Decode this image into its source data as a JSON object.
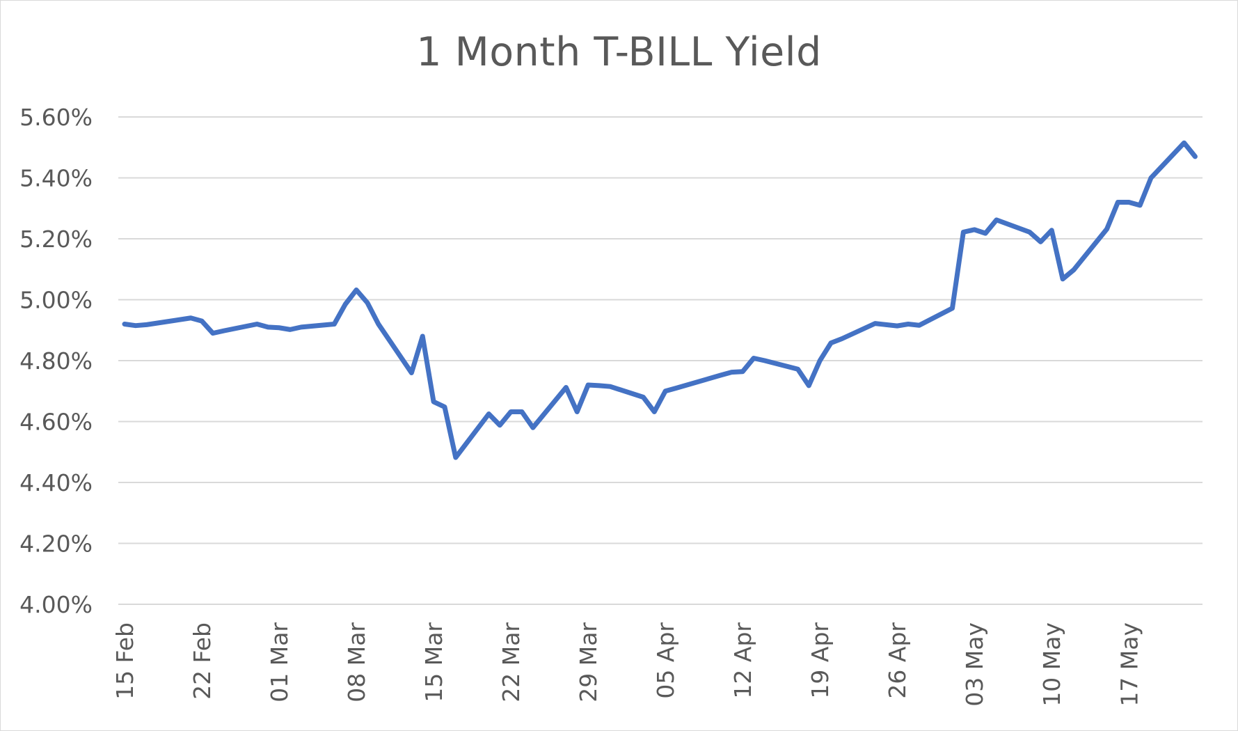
{
  "chart_data": {
    "type": "line",
    "title": "1 Month T-BILL Yield",
    "xlabel": "",
    "ylabel": "",
    "ylim": [
      4.0,
      5.6
    ],
    "yticks": [
      "4.00%",
      "4.20%",
      "4.40%",
      "4.60%",
      "4.80%",
      "5.00%",
      "5.20%",
      "5.40%",
      "5.60%"
    ],
    "xticks": [
      {
        "date": "2023-02-15",
        "label": "15 Feb"
      },
      {
        "date": "2023-02-22",
        "label": "22 Feb"
      },
      {
        "date": "2023-03-01",
        "label": "01 Mar"
      },
      {
        "date": "2023-03-08",
        "label": "08 Mar"
      },
      {
        "date": "2023-03-15",
        "label": "15 Mar"
      },
      {
        "date": "2023-03-22",
        "label": "22 Mar"
      },
      {
        "date": "2023-03-29",
        "label": "29 Mar"
      },
      {
        "date": "2023-04-05",
        "label": "05 Apr"
      },
      {
        "date": "2023-04-12",
        "label": "12 Apr"
      },
      {
        "date": "2023-04-19",
        "label": "19 Apr"
      },
      {
        "date": "2023-04-26",
        "label": "26 Apr"
      },
      {
        "date": "2023-05-03",
        "label": "03 May"
      },
      {
        "date": "2023-05-10",
        "label": "10 May"
      },
      {
        "date": "2023-05-17",
        "label": "17 May"
      }
    ],
    "grid": true,
    "line_color": "#4472c4",
    "grid_color": "#d9d9d9",
    "series": [
      {
        "values": [
          [
            "2023-02-15",
            4.92
          ],
          [
            "2023-02-16",
            4.915
          ],
          [
            "2023-02-17",
            4.918
          ],
          [
            "2023-02-21",
            4.94
          ],
          [
            "2023-02-22",
            4.93
          ],
          [
            "2023-02-23",
            4.89
          ],
          [
            "2023-02-24",
            4.898
          ],
          [
            "2023-02-27",
            4.92
          ],
          [
            "2023-02-28",
            4.91
          ],
          [
            "2023-03-01",
            4.908
          ],
          [
            "2023-03-02",
            4.902
          ],
          [
            "2023-03-03",
            4.91
          ],
          [
            "2023-03-06",
            4.92
          ],
          [
            "2023-03-07",
            4.985
          ],
          [
            "2023-03-08",
            5.032
          ],
          [
            "2023-03-09",
            4.99
          ],
          [
            "2023-03-10",
            4.92
          ],
          [
            "2023-03-13",
            4.76
          ],
          [
            "2023-03-14",
            4.88
          ],
          [
            "2023-03-15",
            4.665
          ],
          [
            "2023-03-16",
            4.648
          ],
          [
            "2023-03-17",
            4.482
          ],
          [
            "2023-03-20",
            4.625
          ],
          [
            "2023-03-21",
            4.588
          ],
          [
            "2023-03-22",
            4.632
          ],
          [
            "2023-03-23",
            4.632
          ],
          [
            "2023-03-24",
            4.58
          ],
          [
            "2023-03-27",
            4.712
          ],
          [
            "2023-03-28",
            4.632
          ],
          [
            "2023-03-29",
            4.72
          ],
          [
            "2023-03-30",
            4.718
          ],
          [
            "2023-03-31",
            4.715
          ],
          [
            "2023-04-03",
            4.68
          ],
          [
            "2023-04-04",
            4.632
          ],
          [
            "2023-04-05",
            4.7
          ],
          [
            "2023-04-06",
            4.71
          ],
          [
            "2023-04-10",
            4.752
          ],
          [
            "2023-04-11",
            4.762
          ],
          [
            "2023-04-12",
            4.764
          ],
          [
            "2023-04-13",
            4.808
          ],
          [
            "2023-04-14",
            4.8
          ],
          [
            "2023-04-17",
            4.772
          ],
          [
            "2023-04-18",
            4.718
          ],
          [
            "2023-04-19",
            4.8
          ],
          [
            "2023-04-20",
            4.858
          ],
          [
            "2023-04-21",
            4.872
          ],
          [
            "2023-04-24",
            4.922
          ],
          [
            "2023-04-25",
            4.918
          ],
          [
            "2023-04-26",
            4.914
          ],
          [
            "2023-04-27",
            4.92
          ],
          [
            "2023-04-28",
            4.916
          ],
          [
            "2023-05-01",
            4.972
          ],
          [
            "2023-05-02",
            5.222
          ],
          [
            "2023-05-03",
            5.23
          ],
          [
            "2023-05-04",
            5.218
          ],
          [
            "2023-05-05",
            5.262
          ],
          [
            "2023-05-08",
            5.222
          ],
          [
            "2023-05-09",
            5.19
          ],
          [
            "2023-05-10",
            5.228
          ],
          [
            "2023-05-11",
            5.068
          ],
          [
            "2023-05-12",
            5.098
          ],
          [
            "2023-05-15",
            5.232
          ],
          [
            "2023-05-16",
            5.32
          ],
          [
            "2023-05-17",
            5.32
          ],
          [
            "2023-05-18",
            5.31
          ],
          [
            "2023-05-19",
            5.4
          ],
          [
            "2023-05-22",
            5.515
          ],
          [
            "2023-05-23",
            5.47
          ]
        ]
      }
    ]
  }
}
